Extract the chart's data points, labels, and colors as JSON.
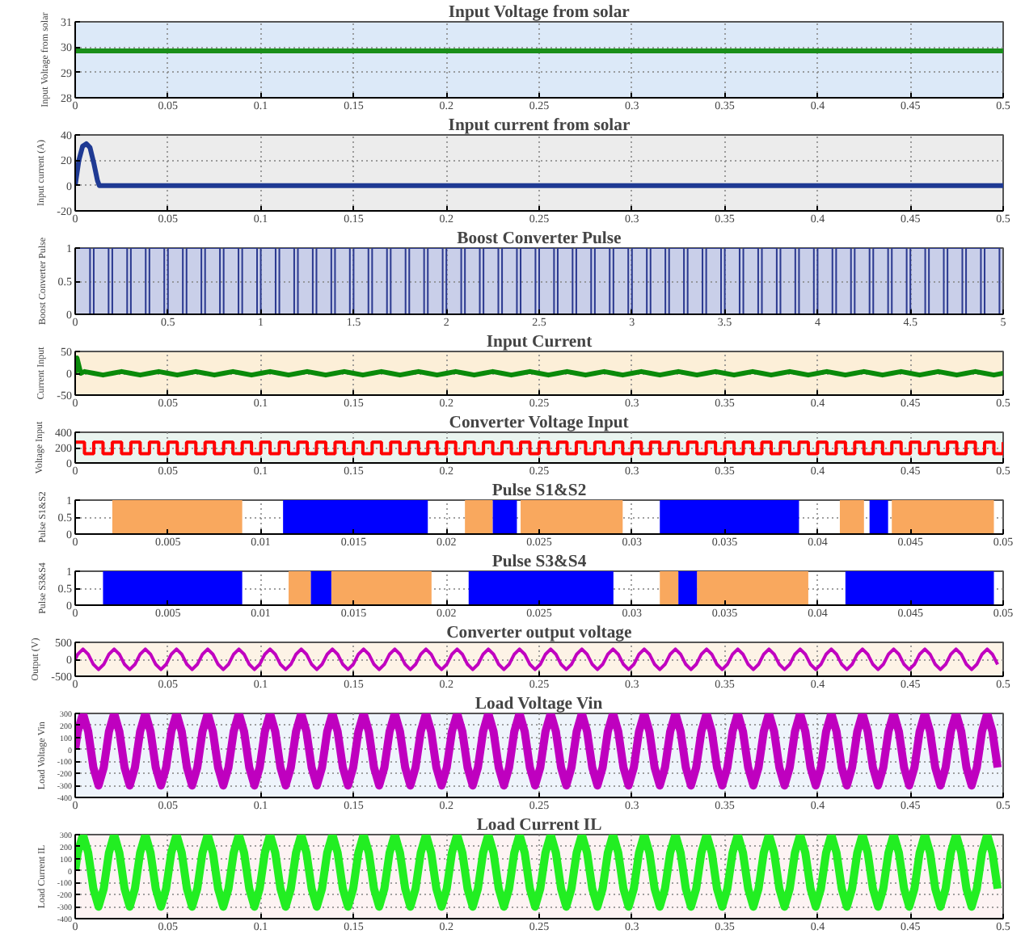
{
  "chart_data": [
    {
      "type": "line",
      "title": "Input Voltage from solar",
      "ylabel": "Input Voltage from solar",
      "color": "#1a8f1a",
      "x": [
        0,
        0.5
      ],
      "values": [
        29.85,
        29.85
      ],
      "xlim": [
        0,
        0.5
      ],
      "ylim": [
        28,
        31
      ],
      "xticks": [
        0,
        0.05,
        0.1,
        0.15,
        0.2,
        0.25,
        0.3,
        0.35,
        0.4,
        0.45,
        0.5
      ],
      "yticks": [
        28,
        29,
        30,
        31
      ],
      "grid": true
    },
    {
      "type": "line",
      "title": "Input current from solar",
      "ylabel": "Input current (A)",
      "color": "#1f3a93",
      "x": [
        0,
        0.002,
        0.004,
        0.006,
        0.008,
        0.01,
        0.012,
        0.013,
        0.5
      ],
      "values": [
        0,
        20,
        31,
        33,
        30,
        18,
        4,
        0,
        0
      ],
      "xlim": [
        0,
        0.5
      ],
      "ylim": [
        -20,
        40
      ],
      "xticks": [
        0,
        0.05,
        0.1,
        0.15,
        0.2,
        0.25,
        0.3,
        0.35,
        0.4,
        0.45,
        0.5
      ],
      "yticks": [
        -20,
        0,
        20,
        40
      ],
      "grid": true
    },
    {
      "type": "step",
      "title": "Boost Converter Pulse",
      "ylabel": "Boost Converter Pulse",
      "color": "#2b3990",
      "x": [
        0,
        0.08,
        0.1,
        0.18,
        0.2,
        0.28,
        0.3,
        0.38,
        0.4,
        0.48,
        0.5,
        0.58,
        0.6,
        0.68,
        0.7,
        0.78,
        0.8,
        0.88,
        0.9,
        0.98,
        1,
        1.08,
        1.1,
        1.18,
        1.2,
        1.28,
        1.3,
        1.38,
        1.4,
        1.48,
        1.5,
        1.58,
        1.6,
        1.68,
        1.7,
        1.78,
        1.8,
        1.88,
        1.9,
        1.98,
        2,
        2.08,
        2.1,
        2.18,
        2.2,
        2.28,
        2.3,
        2.38,
        2.4,
        2.48,
        2.5,
        2.58,
        2.6,
        2.68,
        2.7,
        2.78,
        2.8,
        2.88,
        2.9,
        2.98,
        3,
        3.08,
        3.1,
        3.18,
        3.2,
        3.28,
        3.3,
        3.38,
        3.4,
        3.48,
        3.5,
        3.58,
        3.6,
        3.68,
        3.7,
        3.78,
        3.8,
        3.88,
        3.9,
        3.98,
        4,
        4.08,
        4.1,
        4.18,
        4.2,
        4.28,
        4.3,
        4.38,
        4.4,
        4.48,
        4.5,
        4.58,
        4.6,
        4.68,
        4.7,
        4.78,
        4.8,
        4.88,
        4.9,
        4.98
      ],
      "values": [
        1,
        0,
        1,
        0,
        1,
        0,
        1,
        0,
        1,
        0,
        1,
        0,
        1,
        0,
        1,
        0,
        1,
        0,
        1,
        0,
        1,
        0,
        1,
        0,
        1,
        0,
        1,
        0,
        1,
        0,
        1,
        0,
        1,
        0,
        1,
        0,
        1,
        0,
        1,
        0,
        1,
        0,
        1,
        0,
        1,
        0,
        1,
        0,
        1,
        0,
        1,
        0,
        1,
        0,
        1,
        0,
        1,
        0,
        1,
        0,
        1,
        0,
        1,
        0,
        1,
        0,
        1,
        0,
        1,
        0,
        1,
        0,
        1,
        0,
        1,
        0,
        1,
        0,
        1,
        0,
        1,
        0,
        1,
        0,
        1,
        0,
        1,
        0,
        1,
        0,
        1,
        0,
        1,
        0,
        1,
        0,
        1,
        0,
        1,
        0
      ],
      "xlim": [
        0,
        5
      ],
      "ylim": [
        0,
        1
      ],
      "xticks": [
        0,
        0.5,
        1,
        1.5,
        2,
        2.5,
        3,
        3.5,
        4,
        4.5,
        5
      ],
      "yticks": [
        0,
        0.5,
        1
      ],
      "grid": true
    },
    {
      "type": "line",
      "title": "Input Current",
      "ylabel": "Current Input",
      "color": "#0a8a0a",
      "x": [
        0,
        0.001,
        0.003,
        0.005,
        0.01,
        0.015,
        0.02,
        0.025,
        0.03,
        0.035,
        0.04,
        0.045,
        0.05,
        0.055,
        0.06,
        0.065,
        0.07,
        0.075,
        0.08,
        0.085,
        0.09,
        0.095,
        0.1,
        0.105,
        0.11,
        0.115,
        0.12,
        0.125,
        0.13,
        0.135,
        0.14,
        0.145,
        0.15,
        0.155,
        0.16,
        0.165,
        0.17,
        0.175,
        0.18,
        0.185,
        0.19,
        0.195,
        0.2,
        0.205,
        0.21,
        0.215,
        0.22,
        0.225,
        0.23,
        0.235,
        0.24,
        0.245,
        0.25,
        0.255,
        0.26,
        0.265,
        0.27,
        0.275,
        0.28,
        0.285,
        0.29,
        0.295,
        0.3,
        0.305,
        0.31,
        0.315,
        0.32,
        0.325,
        0.33,
        0.335,
        0.34,
        0.345,
        0.35,
        0.355,
        0.36,
        0.365,
        0.37,
        0.375,
        0.38,
        0.385,
        0.39,
        0.395,
        0.4,
        0.405,
        0.41,
        0.415,
        0.42,
        0.425,
        0.43,
        0.435,
        0.44,
        0.445,
        0.45,
        0.455,
        0.46,
        0.465,
        0.47,
        0.475,
        0.48,
        0.485,
        0.49,
        0.495,
        0.5
      ],
      "values": [
        0,
        35,
        0,
        4,
        0,
        -4,
        0,
        4,
        0,
        -4,
        0,
        4,
        0,
        -4,
        0,
        4,
        0,
        -4,
        0,
        4,
        0,
        -4,
        0,
        4,
        0,
        -4,
        0,
        4,
        0,
        -4,
        0,
        4,
        0,
        -4,
        0,
        4,
        0,
        -4,
        0,
        4,
        0,
        -4,
        0,
        4,
        0,
        -4,
        0,
        4,
        0,
        -4,
        0,
        4,
        0,
        -4,
        0,
        4,
        0,
        -4,
        0,
        4,
        0,
        -4,
        0,
        4,
        0,
        -4,
        0,
        4,
        0,
        -4,
        0,
        4,
        0,
        -4,
        0,
        4,
        0,
        -4,
        0,
        4,
        0,
        -4,
        0,
        4,
        0,
        -4,
        0,
        4,
        0,
        -4,
        0,
        4,
        0,
        -4,
        0,
        4,
        0,
        -4,
        0,
        4,
        0,
        -4,
        0
      ],
      "xlim": [
        0,
        0.5
      ],
      "ylim": [
        -50,
        50
      ],
      "xticks": [
        0,
        0.05,
        0.1,
        0.15,
        0.2,
        0.25,
        0.3,
        0.35,
        0.4,
        0.45,
        0.5
      ],
      "yticks": [
        -50,
        0,
        50
      ],
      "grid": true
    },
    {
      "type": "step",
      "title": "Converter Voltage Input",
      "ylabel": "Voltage Input",
      "color": "#ff0000",
      "x": [
        0,
        0.005,
        0.01,
        0.015,
        0.02,
        0.025,
        0.03,
        0.035,
        0.04,
        0.045,
        0.05,
        0.055,
        0.06,
        0.065,
        0.07,
        0.075,
        0.08,
        0.085,
        0.09,
        0.095,
        0.1,
        0.105,
        0.11,
        0.115,
        0.12,
        0.125,
        0.13,
        0.135,
        0.14,
        0.145,
        0.15,
        0.155,
        0.16,
        0.165,
        0.17,
        0.175,
        0.18,
        0.185,
        0.19,
        0.195,
        0.2,
        0.205,
        0.21,
        0.215,
        0.22,
        0.225,
        0.23,
        0.235,
        0.24,
        0.245,
        0.25,
        0.255,
        0.26,
        0.265,
        0.27,
        0.275,
        0.28,
        0.285,
        0.29,
        0.295,
        0.3,
        0.305,
        0.31,
        0.315,
        0.32,
        0.325,
        0.33,
        0.335,
        0.34,
        0.345,
        0.35,
        0.355,
        0.36,
        0.365,
        0.37,
        0.375,
        0.38,
        0.385,
        0.39,
        0.395,
        0.4,
        0.405,
        0.41,
        0.415,
        0.42,
        0.425,
        0.43,
        0.435,
        0.44,
        0.445,
        0.45,
        0.455,
        0.46,
        0.465,
        0.47,
        0.475,
        0.48,
        0.485,
        0.49,
        0.495,
        0.5
      ],
      "values": [
        270,
        120,
        270,
        120,
        270,
        120,
        270,
        120,
        270,
        120,
        270,
        120,
        270,
        120,
        270,
        120,
        270,
        120,
        270,
        120,
        270,
        120,
        270,
        120,
        270,
        120,
        270,
        120,
        270,
        120,
        270,
        120,
        270,
        120,
        270,
        120,
        270,
        120,
        270,
        120,
        270,
        120,
        270,
        120,
        270,
        120,
        270,
        120,
        270,
        120,
        270,
        120,
        270,
        120,
        270,
        120,
        270,
        120,
        270,
        120,
        270,
        120,
        270,
        120,
        270,
        120,
        270,
        120,
        270,
        120,
        270,
        120,
        270,
        120,
        270,
        120,
        270,
        120,
        270,
        120,
        270,
        120,
        270,
        120,
        270,
        120,
        270,
        120,
        270,
        120,
        270,
        120,
        270,
        120,
        270,
        120,
        270,
        120,
        270,
        120,
        270
      ],
      "xlim": [
        0,
        0.5
      ],
      "ylim": [
        0,
        400
      ],
      "xticks": [
        0,
        0.05,
        0.1,
        0.15,
        0.2,
        0.25,
        0.3,
        0.35,
        0.4,
        0.45,
        0.5
      ],
      "yticks": [
        0,
        200,
        400
      ],
      "grid": true
    },
    {
      "type": "area",
      "title": "Pulse S1&S2",
      "ylabel": "Pulse S1&S2",
      "series": [
        {
          "color": "#f9a85e",
          "x": [
            0.002,
            0.002,
            0.009,
            0.009,
            0.021,
            0.021,
            0.0225,
            0.0225,
            0.024,
            0.024,
            0.0295,
            0.0295,
            0.0412,
            0.0412,
            0.0425,
            0.0425,
            0.044,
            0.044,
            0.0495,
            0.0495
          ],
          "values": [
            0,
            1,
            1,
            0,
            0,
            1,
            1,
            0,
            0,
            1,
            1,
            0,
            0,
            1,
            1,
            0,
            0,
            1,
            1,
            0
          ]
        },
        {
          "color": "#0000ff",
          "x": [
            0.0112,
            0.0112,
            0.019,
            0.019,
            0.0225,
            0.0225,
            0.0238,
            0.0238,
            0.0315,
            0.0315,
            0.039,
            0.039,
            0.0428,
            0.0428,
            0.0438,
            0.0438
          ],
          "values": [
            0,
            1,
            1,
            0,
            0,
            1,
            1,
            0,
            0,
            1,
            1,
            0,
            0,
            1,
            1,
            0
          ]
        }
      ],
      "xlim": [
        0,
        0.05
      ],
      "ylim": [
        0,
        1
      ],
      "xticks": [
        0,
        0.005,
        0.01,
        0.015,
        0.02,
        0.025,
        0.03,
        0.035,
        0.04,
        0.045,
        0.05
      ],
      "yticks": [
        0,
        0.5,
        1
      ],
      "grid": true
    },
    {
      "type": "area",
      "title": "Pulse S3&S4",
      "ylabel": "Pulse S3&S4",
      "series": [
        {
          "color": "#f9a85e",
          "x": [
            0.0115,
            0.0115,
            0.0127,
            0.0127,
            0.0138,
            0.0138,
            0.0192,
            0.0192,
            0.0315,
            0.0315,
            0.0325,
            0.0325,
            0.0335,
            0.0335,
            0.0395,
            0.0395
          ],
          "values": [
            0,
            1,
            1,
            0,
            0,
            1,
            1,
            0,
            0,
            1,
            1,
            0,
            0,
            1,
            1,
            0
          ]
        },
        {
          "color": "#0000ff",
          "x": [
            0.0015,
            0.0015,
            0.009,
            0.009,
            0.0127,
            0.0127,
            0.0138,
            0.0138,
            0.0212,
            0.0212,
            0.029,
            0.029,
            0.0325,
            0.0325,
            0.0335,
            0.0335,
            0.0415,
            0.0415,
            0.0495,
            0.0495
          ],
          "values": [
            0,
            1,
            1,
            0,
            0,
            1,
            1,
            0,
            0,
            1,
            1,
            0,
            0,
            1,
            1,
            0,
            0,
            1,
            1,
            0
          ]
        }
      ],
      "xlim": [
        0,
        0.05
      ],
      "ylim": [
        0,
        1
      ],
      "xticks": [
        0,
        0.005,
        0.01,
        0.015,
        0.02,
        0.025,
        0.03,
        0.035,
        0.04,
        0.045,
        0.05
      ],
      "yticks": [
        0,
        0.5,
        1
      ],
      "grid": true
    },
    {
      "type": "line",
      "title": "Converter output voltage",
      "ylabel": "Output (V)",
      "color": "#c000c0",
      "x": [
        0,
        0.0014,
        0.0042,
        0.007,
        0.0098,
        0.0126,
        0.0154,
        0.0182,
        0.021,
        0.0238,
        0.0266,
        0.0294,
        0.0322,
        0.035,
        0.0378,
        0.0406,
        0.0434,
        0.0462,
        0.049,
        0.0518,
        0.0546,
        0.0574,
        0.0602,
        0.063,
        0.0658,
        0.0686,
        0.0714,
        0.0742,
        0.077,
        0.0798,
        0.0826,
        0.0854,
        0.0882,
        0.091,
        0.0938,
        0.0966,
        0.0994,
        0.1022,
        0.105,
        0.1078,
        0.1106,
        0.1134,
        0.1162,
        0.119,
        0.1218,
        0.1246,
        0.1274,
        0.1302,
        0.133,
        0.1358,
        0.1386,
        0.1414,
        0.1442,
        0.147,
        0.1498,
        0.1526,
        0.1554,
        0.1582,
        0.161,
        0.1638,
        0.1666,
        0.1694,
        0.1722,
        0.175,
        0.1778,
        0.1806,
        0.1834,
        0.1862,
        0.189,
        0.1918,
        0.1946,
        0.1974,
        0.2002,
        0.203,
        0.2058,
        0.2086,
        0.2114,
        0.2142,
        0.217,
        0.2198,
        0.2226,
        0.2254,
        0.2282,
        0.231,
        0.2338,
        0.2366,
        0.2394,
        0.2422,
        0.245,
        0.2478,
        0.2506,
        0.2534,
        0.2562,
        0.259,
        0.2618,
        0.2646,
        0.2674,
        0.2702,
        0.273,
        0.2758,
        0.2786,
        0.2814,
        0.2842,
        0.287,
        0.2898,
        0.2926,
        0.2954,
        0.2982,
        0.301,
        0.3038,
        0.3066,
        0.3094,
        0.3122,
        0.315,
        0.3178,
        0.3206,
        0.3234,
        0.3262,
        0.329,
        0.3318,
        0.3346,
        0.3374,
        0.3402,
        0.343,
        0.3458,
        0.3486,
        0.3514,
        0.3542,
        0.357,
        0.3598,
        0.3626,
        0.3654,
        0.3682,
        0.371,
        0.3738,
        0.3766,
        0.3794,
        0.3822,
        0.385,
        0.3878,
        0.3906,
        0.3934,
        0.3962,
        0.399,
        0.4018,
        0.4046,
        0.4074,
        0.4102,
        0.413,
        0.4158,
        0.4186,
        0.4214,
        0.4242,
        0.427,
        0.4298,
        0.4326,
        0.4354,
        0.4382,
        0.441,
        0.4438,
        0.4466,
        0.4494,
        0.4522,
        0.455,
        0.4578,
        0.4606,
        0.4634,
        0.4662,
        0.469,
        0.4718,
        0.4746,
        0.4774,
        0.4802,
        0.483,
        0.4858,
        0.4886,
        0.4914,
        0.4942,
        0.497
      ],
      "values": [
        0,
        150,
        300,
        150,
        -150,
        -300,
        -150,
        150,
        300,
        150,
        -150,
        -300,
        -150,
        150,
        300,
        150,
        -150,
        -300,
        -150,
        150,
        300,
        150,
        -150,
        -300,
        -150,
        150,
        300,
        150,
        -150,
        -300,
        -150,
        150,
        300,
        150,
        -150,
        -300,
        -150,
        150,
        300,
        150,
        -150,
        -300,
        -150,
        150,
        300,
        150,
        -150,
        -300,
        -150,
        150,
        300,
        150,
        -150,
        -300,
        -150,
        150,
        300,
        150,
        -150,
        -300,
        -150,
        150,
        300,
        150,
        -150,
        -300,
        -150,
        150,
        300,
        150,
        -150,
        -300,
        -150,
        150,
        300,
        150,
        -150,
        -300,
        -150,
        150,
        300,
        150,
        -150,
        -300,
        -150,
        150,
        300,
        150,
        -150,
        -300,
        -150,
        150,
        300,
        150,
        -150,
        -300,
        -150,
        150,
        300,
        150,
        -150,
        -300,
        -150,
        150,
        300,
        150,
        -150,
        -300,
        -150,
        150,
        300,
        150,
        -150,
        -300,
        -150,
        150,
        300,
        150,
        -150,
        -300,
        -150,
        150,
        300,
        150,
        -150,
        -300,
        -150,
        150,
        300,
        150,
        -150,
        -300,
        -150,
        150,
        300,
        150,
        -150,
        -300,
        -150,
        150,
        300,
        150,
        -150,
        -300,
        -150,
        150,
        300,
        150,
        -150,
        -300,
        -150,
        150,
        300,
        150,
        -150,
        -300,
        -150,
        150,
        300,
        150,
        -150,
        -300,
        -150,
        150,
        300,
        150,
        -150,
        -300,
        -150,
        150,
        300,
        150,
        -150,
        -300,
        -150,
        150,
        300,
        150,
        -150
      ],
      "xlim": [
        0,
        0.5
      ],
      "ylim": [
        -500,
        500
      ],
      "xticks": [
        0,
        0.05,
        0.1,
        0.15,
        0.2,
        0.25,
        0.3,
        0.35,
        0.4,
        0.45,
        0.5
      ],
      "yticks": [
        -500,
        0,
        500
      ],
      "grid": true
    },
    {
      "type": "line",
      "title": "Load Voltage Vin",
      "ylabel": "Load Voltage Vin",
      "color": "#bf00bf",
      "x": [
        0,
        0.0014,
        0.0042,
        0.007,
        0.0098,
        0.0126,
        0.0154,
        0.0182,
        0.021,
        0.0238,
        0.0266,
        0.0294,
        0.0322,
        0.035,
        0.0378,
        0.0406,
        0.0434,
        0.0462,
        0.049,
        0.0518,
        0.0546,
        0.0574,
        0.0602,
        0.063,
        0.0658,
        0.0686,
        0.0714,
        0.0742,
        0.077,
        0.0798,
        0.0826,
        0.0854,
        0.0882,
        0.091,
        0.0938,
        0.0966,
        0.0994,
        0.1022,
        0.105,
        0.1078,
        0.1106,
        0.1134,
        0.1162,
        0.119,
        0.1218,
        0.1246,
        0.1274,
        0.1302,
        0.133,
        0.1358,
        0.1386,
        0.1414,
        0.1442,
        0.147,
        0.1498,
        0.1526,
        0.1554,
        0.1582,
        0.161,
        0.1638,
        0.1666,
        0.1694,
        0.1722,
        0.175,
        0.1778,
        0.1806,
        0.1834,
        0.1862,
        0.189,
        0.1918,
        0.1946,
        0.1974,
        0.2002,
        0.203,
        0.2058,
        0.2086,
        0.2114,
        0.2142,
        0.217,
        0.2198,
        0.2226,
        0.2254,
        0.2282,
        0.231,
        0.2338,
        0.2366,
        0.2394,
        0.2422,
        0.245,
        0.2478,
        0.2506,
        0.2534,
        0.2562,
        0.259,
        0.2618,
        0.2646,
        0.2674,
        0.2702,
        0.273,
        0.2758,
        0.2786,
        0.2814,
        0.2842,
        0.287,
        0.2898,
        0.2926,
        0.2954,
        0.2982,
        0.301,
        0.3038,
        0.3066,
        0.3094,
        0.3122,
        0.315,
        0.3178,
        0.3206,
        0.3234,
        0.3262,
        0.329,
        0.3318,
        0.3346,
        0.3374,
        0.3402,
        0.343,
        0.3458,
        0.3486,
        0.3514,
        0.3542,
        0.357,
        0.3598,
        0.3626,
        0.3654,
        0.3682,
        0.371,
        0.3738,
        0.3766,
        0.3794,
        0.3822,
        0.385,
        0.3878,
        0.3906,
        0.3934,
        0.3962,
        0.399,
        0.4018,
        0.4046,
        0.4074,
        0.4102,
        0.413,
        0.4158,
        0.4186,
        0.4214,
        0.4242,
        0.427,
        0.4298,
        0.4326,
        0.4354,
        0.4382,
        0.441,
        0.4438,
        0.4466,
        0.4494,
        0.4522,
        0.455,
        0.4578,
        0.4606,
        0.4634,
        0.4662,
        0.469,
        0.4718,
        0.4746,
        0.4774,
        0.4802,
        0.483,
        0.4858,
        0.4886,
        0.4914,
        0.4942,
        0.497
      ],
      "values": [
        0,
        150,
        300,
        150,
        -150,
        -300,
        -150,
        150,
        300,
        150,
        -150,
        -300,
        -150,
        150,
        300,
        150,
        -150,
        -300,
        -150,
        150,
        300,
        150,
        -150,
        -300,
        -150,
        150,
        300,
        150,
        -150,
        -300,
        -150,
        150,
        300,
        150,
        -150,
        -300,
        -150,
        150,
        300,
        150,
        -150,
        -300,
        -150,
        150,
        300,
        150,
        -150,
        -300,
        -150,
        150,
        300,
        150,
        -150,
        -300,
        -150,
        150,
        300,
        150,
        -150,
        -300,
        -150,
        150,
        300,
        150,
        -150,
        -300,
        -150,
        150,
        300,
        150,
        -150,
        -300,
        -150,
        150,
        300,
        150,
        -150,
        -300,
        -150,
        150,
        300,
        150,
        -150,
        -300,
        -150,
        150,
        300,
        150,
        -150,
        -300,
        -150,
        150,
        300,
        150,
        -150,
        -300,
        -150,
        150,
        300,
        150,
        -150,
        -300,
        -150,
        150,
        300,
        150,
        -150,
        -300,
        -150,
        150,
        300,
        150,
        -150,
        -300,
        -150,
        150,
        300,
        150,
        -150,
        -300,
        -150,
        150,
        300,
        150,
        -150,
        -300,
        -150,
        150,
        300,
        150,
        -150,
        -300,
        -150,
        150,
        300,
        150,
        -150,
        -300,
        -150,
        150,
        300,
        150,
        -150,
        -300,
        -150,
        150,
        300,
        150,
        -150,
        -300,
        -150,
        150,
        300,
        150,
        -150,
        -300,
        -150,
        150,
        300,
        150,
        -150,
        -300,
        -150,
        150,
        300,
        150,
        -150,
        -300,
        -150,
        150,
        300,
        150,
        -150,
        -300,
        -150,
        150,
        300,
        150,
        -150
      ],
      "xlim": [
        0,
        0.5
      ],
      "ylim": [
        -400,
        300
      ],
      "xticks": [
        0,
        0.05,
        0.1,
        0.15,
        0.2,
        0.25,
        0.3,
        0.35,
        0.4,
        0.45,
        0.5
      ],
      "yticks": [
        -400,
        -300,
        -200,
        -100,
        0,
        100,
        200,
        300
      ],
      "grid": true
    },
    {
      "type": "line",
      "title": "Load Current IL",
      "ylabel": "Load Current IL",
      "color": "#22ee22",
      "x": [
        0,
        0.0014,
        0.0042,
        0.007,
        0.0098,
        0.0126,
        0.0154,
        0.0182,
        0.021,
        0.0238,
        0.0266,
        0.0294,
        0.0322,
        0.035,
        0.0378,
        0.0406,
        0.0434,
        0.0462,
        0.049,
        0.0518,
        0.0546,
        0.0574,
        0.0602,
        0.063,
        0.0658,
        0.0686,
        0.0714,
        0.0742,
        0.077,
        0.0798,
        0.0826,
        0.0854,
        0.0882,
        0.091,
        0.0938,
        0.0966,
        0.0994,
        0.1022,
        0.105,
        0.1078,
        0.1106,
        0.1134,
        0.1162,
        0.119,
        0.1218,
        0.1246,
        0.1274,
        0.1302,
        0.133,
        0.1358,
        0.1386,
        0.1414,
        0.1442,
        0.147,
        0.1498,
        0.1526,
        0.1554,
        0.1582,
        0.161,
        0.1638,
        0.1666,
        0.1694,
        0.1722,
        0.175,
        0.1778,
        0.1806,
        0.1834,
        0.1862,
        0.189,
        0.1918,
        0.1946,
        0.1974,
        0.2002,
        0.203,
        0.2058,
        0.2086,
        0.2114,
        0.2142,
        0.217,
        0.2198,
        0.2226,
        0.2254,
        0.2282,
        0.231,
        0.2338,
        0.2366,
        0.2394,
        0.2422,
        0.245,
        0.2478,
        0.2506,
        0.2534,
        0.2562,
        0.259,
        0.2618,
        0.2646,
        0.2674,
        0.2702,
        0.273,
        0.2758,
        0.2786,
        0.2814,
        0.2842,
        0.287,
        0.2898,
        0.2926,
        0.2954,
        0.2982,
        0.301,
        0.3038,
        0.3066,
        0.3094,
        0.3122,
        0.315,
        0.3178,
        0.3206,
        0.3234,
        0.3262,
        0.329,
        0.3318,
        0.3346,
        0.3374,
        0.3402,
        0.343,
        0.3458,
        0.3486,
        0.3514,
        0.3542,
        0.357,
        0.3598,
        0.3626,
        0.3654,
        0.3682,
        0.371,
        0.3738,
        0.3766,
        0.3794,
        0.3822,
        0.385,
        0.3878,
        0.3906,
        0.3934,
        0.3962,
        0.399,
        0.4018,
        0.4046,
        0.4074,
        0.4102,
        0.413,
        0.4158,
        0.4186,
        0.4214,
        0.4242,
        0.427,
        0.4298,
        0.4326,
        0.4354,
        0.4382,
        0.441,
        0.4438,
        0.4466,
        0.4494,
        0.4522,
        0.455,
        0.4578,
        0.4606,
        0.4634,
        0.4662,
        0.469,
        0.4718,
        0.4746,
        0.4774,
        0.4802,
        0.483,
        0.4858,
        0.4886,
        0.4914,
        0.4942,
        0.497
      ],
      "values": [
        0,
        150,
        300,
        150,
        -150,
        -300,
        -150,
        150,
        300,
        150,
        -150,
        -300,
        -150,
        150,
        300,
        150,
        -150,
        -300,
        -150,
        150,
        300,
        150,
        -150,
        -300,
        -150,
        150,
        300,
        150,
        -150,
        -300,
        -150,
        150,
        300,
        150,
        -150,
        -300,
        -150,
        150,
        300,
        150,
        -150,
        -300,
        -150,
        150,
        300,
        150,
        -150,
        -300,
        -150,
        150,
        300,
        150,
        -150,
        -300,
        -150,
        150,
        300,
        150,
        -150,
        -300,
        -150,
        150,
        300,
        150,
        -150,
        -300,
        -150,
        150,
        300,
        150,
        -150,
        -300,
        -150,
        150,
        300,
        150,
        -150,
        -300,
        -150,
        150,
        300,
        150,
        -150,
        -300,
        -150,
        150,
        300,
        150,
        -150,
        -300,
        -150,
        150,
        300,
        150,
        -150,
        -300,
        -150,
        150,
        300,
        150,
        -150,
        -300,
        -150,
        150,
        300,
        150,
        -150,
        -300,
        -150,
        150,
        300,
        150,
        -150,
        -300,
        -150,
        150,
        300,
        150,
        -150,
        -300,
        -150,
        150,
        300,
        150,
        -150,
        -300,
        -150,
        150,
        300,
        150,
        -150,
        -300,
        -150,
        150,
        300,
        150,
        -150,
        -300,
        -150,
        150,
        300,
        150,
        -150,
        -300,
        -150,
        150,
        300,
        150,
        -150,
        -300,
        -150,
        150,
        300,
        150,
        -150,
        -300,
        -150,
        150,
        300,
        150,
        -150,
        -300,
        -150,
        150,
        300,
        150,
        -150,
        -300,
        -150,
        150,
        300,
        150,
        -150,
        -300,
        -150,
        150,
        300,
        150,
        -150
      ],
      "xlim": [
        0,
        0.5
      ],
      "ylim": [
        -400,
        300
      ],
      "xticks": [
        0,
        0.05,
        0.1,
        0.15,
        0.2,
        0.25,
        0.3,
        0.35,
        0.4,
        0.45,
        0.5
      ],
      "yticks": [
        -400,
        -300,
        -200,
        -100,
        0,
        100,
        200,
        300
      ],
      "grid": true
    }
  ]
}
